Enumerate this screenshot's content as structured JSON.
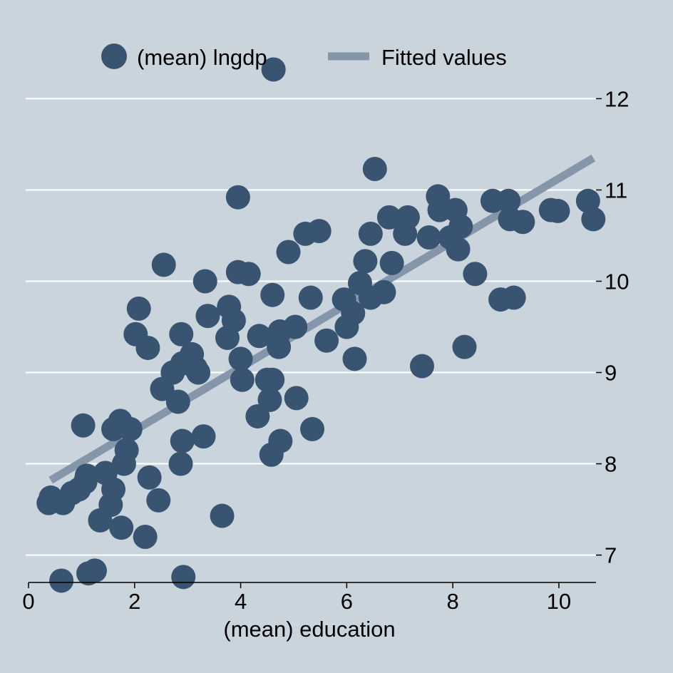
{
  "colors": {
    "background": "#cad4dd",
    "gridline": "#ffffff",
    "points": "#385470",
    "fit_line": "#8596ab",
    "axis": "#000000"
  },
  "legend": {
    "placement": "top",
    "entries": [
      "(mean) lngdp",
      "Fitted values"
    ]
  },
  "chart_data": {
    "type": "scatter",
    "xlabel": "(mean) education",
    "ylabel": "",
    "xlim": [
      0,
      10.7
    ],
    "ylim": [
      6.7,
      12.3
    ],
    "xticks": [
      0,
      2,
      4,
      6,
      8,
      10
    ],
    "yticks": [
      7,
      8,
      9,
      10,
      11,
      12
    ],
    "y_axis_side": "right",
    "grid": "horizontal",
    "series": [
      {
        "name": "(mean) lngdp",
        "kind": "scatter",
        "points": [
          [
            0.38,
            7.57
          ],
          [
            0.42,
            7.63
          ],
          [
            0.65,
            7.57
          ],
          [
            0.62,
            6.72
          ],
          [
            0.82,
            7.68
          ],
          [
            0.95,
            7.72
          ],
          [
            1.07,
            7.8
          ],
          [
            1.1,
            7.87
          ],
          [
            1.03,
            8.42
          ],
          [
            1.13,
            6.8
          ],
          [
            1.25,
            6.83
          ],
          [
            1.35,
            7.38
          ],
          [
            1.45,
            7.9
          ],
          [
            1.55,
            7.55
          ],
          [
            1.6,
            7.72
          ],
          [
            1.6,
            8.38
          ],
          [
            1.73,
            8.47
          ],
          [
            1.75,
            7.3
          ],
          [
            1.8,
            8.0
          ],
          [
            1.85,
            8.15
          ],
          [
            1.92,
            8.38
          ],
          [
            2.02,
            9.42
          ],
          [
            2.08,
            9.7
          ],
          [
            2.25,
            9.27
          ],
          [
            2.28,
            7.85
          ],
          [
            2.2,
            7.2
          ],
          [
            2.45,
            7.6
          ],
          [
            2.52,
            8.82
          ],
          [
            2.55,
            10.18
          ],
          [
            2.72,
            9.0
          ],
          [
            2.82,
            8.68
          ],
          [
            2.87,
            8.0
          ],
          [
            2.9,
            8.25
          ],
          [
            2.88,
            9.42
          ],
          [
            2.9,
            9.1
          ],
          [
            2.92,
            6.76
          ],
          [
            3.08,
            9.2
          ],
          [
            3.15,
            9.05
          ],
          [
            3.2,
            9.0
          ],
          [
            3.3,
            8.3
          ],
          [
            3.33,
            10.0
          ],
          [
            3.38,
            9.62
          ],
          [
            3.65,
            7.43
          ],
          [
            3.75,
            9.38
          ],
          [
            3.78,
            9.72
          ],
          [
            3.87,
            9.57
          ],
          [
            3.95,
            10.92
          ],
          [
            3.95,
            10.1
          ],
          [
            4.0,
            9.15
          ],
          [
            4.03,
            8.92
          ],
          [
            4.15,
            10.08
          ],
          [
            4.32,
            8.52
          ],
          [
            4.35,
            9.4
          ],
          [
            4.5,
            8.92
          ],
          [
            4.55,
            8.7
          ],
          [
            4.58,
            8.1
          ],
          [
            4.6,
            8.92
          ],
          [
            4.6,
            9.85
          ],
          [
            4.62,
            12.32
          ],
          [
            4.72,
            9.28
          ],
          [
            4.74,
            9.45
          ],
          [
            4.75,
            8.25
          ],
          [
            4.9,
            10.32
          ],
          [
            5.03,
            9.5
          ],
          [
            5.05,
            8.72
          ],
          [
            5.22,
            10.52
          ],
          [
            5.32,
            9.82
          ],
          [
            5.35,
            8.38
          ],
          [
            5.48,
            10.55
          ],
          [
            5.62,
            9.35
          ],
          [
            5.95,
            9.8
          ],
          [
            6.0,
            9.5
          ],
          [
            6.12,
            9.65
          ],
          [
            6.15,
            9.15
          ],
          [
            6.25,
            9.98
          ],
          [
            6.35,
            10.22
          ],
          [
            6.45,
            10.52
          ],
          [
            6.45,
            9.82
          ],
          [
            6.53,
            11.23
          ],
          [
            6.7,
            9.88
          ],
          [
            6.8,
            10.7
          ],
          [
            6.85,
            10.2
          ],
          [
            7.1,
            10.52
          ],
          [
            7.15,
            10.7
          ],
          [
            7.42,
            9.07
          ],
          [
            7.55,
            10.48
          ],
          [
            7.72,
            10.93
          ],
          [
            7.75,
            10.78
          ],
          [
            7.95,
            10.48
          ],
          [
            8.05,
            10.78
          ],
          [
            8.1,
            10.35
          ],
          [
            8.15,
            10.6
          ],
          [
            8.22,
            9.28
          ],
          [
            8.42,
            10.08
          ],
          [
            8.75,
            10.88
          ],
          [
            8.9,
            9.8
          ],
          [
            9.05,
            10.88
          ],
          [
            9.08,
            10.68
          ],
          [
            9.15,
            9.82
          ],
          [
            9.32,
            10.65
          ],
          [
            9.85,
            10.78
          ],
          [
            9.98,
            10.77
          ],
          [
            10.55,
            10.88
          ],
          [
            10.65,
            10.68
          ]
        ]
      },
      {
        "name": "Fitted values",
        "kind": "line",
        "x": [
          0.42,
          10.65
        ],
        "y": [
          7.82,
          11.35
        ]
      }
    ]
  }
}
